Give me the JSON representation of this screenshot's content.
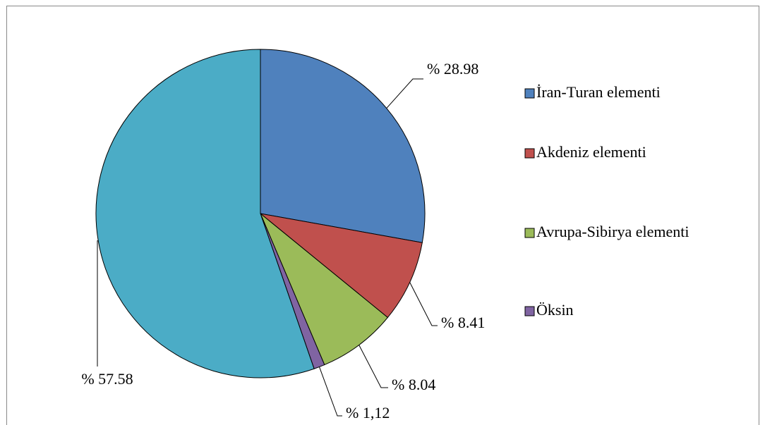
{
  "chart_data": {
    "type": "pie",
    "categories": [
      "İran-Turan elementi",
      "Akdeniz elementi",
      "Avrupa-Sibirya elementi",
      "Öksin",
      null
    ],
    "values": [
      28.98,
      8.41,
      8.04,
      1.12,
      57.58
    ],
    "value_labels": [
      "% 28.98",
      "% 8.41",
      "% 8.04",
      "% 1,12",
      "% 57.58"
    ],
    "colors": [
      "#4f81bd",
      "#c0504d",
      "#9bbb59",
      "#8064a2",
      "#4bacc6"
    ],
    "legend": "right"
  }
}
